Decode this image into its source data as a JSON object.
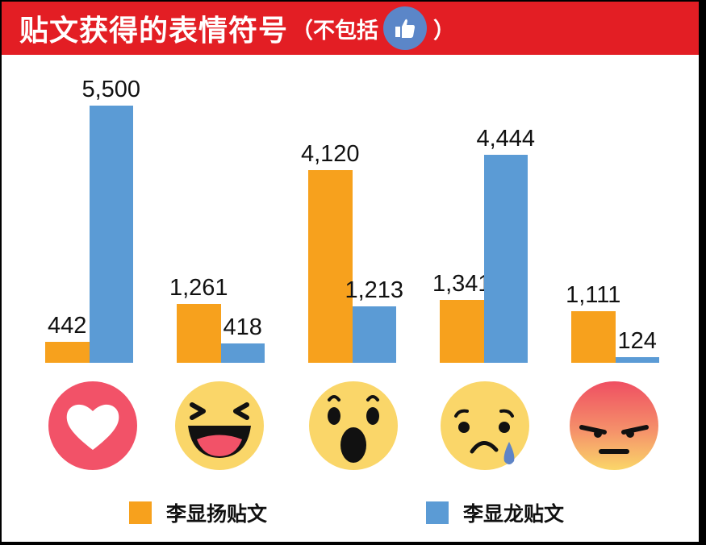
{
  "header": {
    "title": "贴文获得的表情符号",
    "paren_open": "（不包括",
    "paren_close": "）",
    "excluded_icon": "thumbs-up-like-icon"
  },
  "colors": {
    "header_bg": "#e31e24",
    "series_yang": "#f7a11d",
    "series_long": "#5b9bd5"
  },
  "legend": [
    {
      "label": "李显扬贴文",
      "color": "#f7a11d"
    },
    {
      "label": "李显龙贴文",
      "color": "#5b9bd5"
    }
  ],
  "categories": [
    {
      "icon": "love-heart-icon",
      "yang": "442",
      "long": "5,500"
    },
    {
      "icon": "haha-laughing-icon",
      "yang": "1,261",
      "long": "418"
    },
    {
      "icon": "wow-surprised-icon",
      "yang": "4,120",
      "long": "1,213"
    },
    {
      "icon": "sad-crying-icon",
      "yang": "1,341",
      "long": "4,444"
    },
    {
      "icon": "angry-icon",
      "yang": "1,111",
      "long": "124"
    }
  ],
  "chart_data": {
    "type": "bar",
    "title": "贴文获得的表情符号（不包括 👍）",
    "categories": [
      "Love",
      "Haha",
      "Wow",
      "Sad",
      "Angry"
    ],
    "series": [
      {
        "name": "李显扬贴文",
        "color": "#f7a11d",
        "values": [
          442,
          1261,
          4120,
          1341,
          1111
        ]
      },
      {
        "name": "李显龙贴文",
        "color": "#5b9bd5",
        "values": [
          5500,
          418,
          1213,
          4444,
          124
        ]
      }
    ],
    "xlabel": "",
    "ylabel": "",
    "ylim": [
      0,
      5500
    ],
    "grid": false,
    "data_labels": true,
    "legend_position": "bottom"
  }
}
